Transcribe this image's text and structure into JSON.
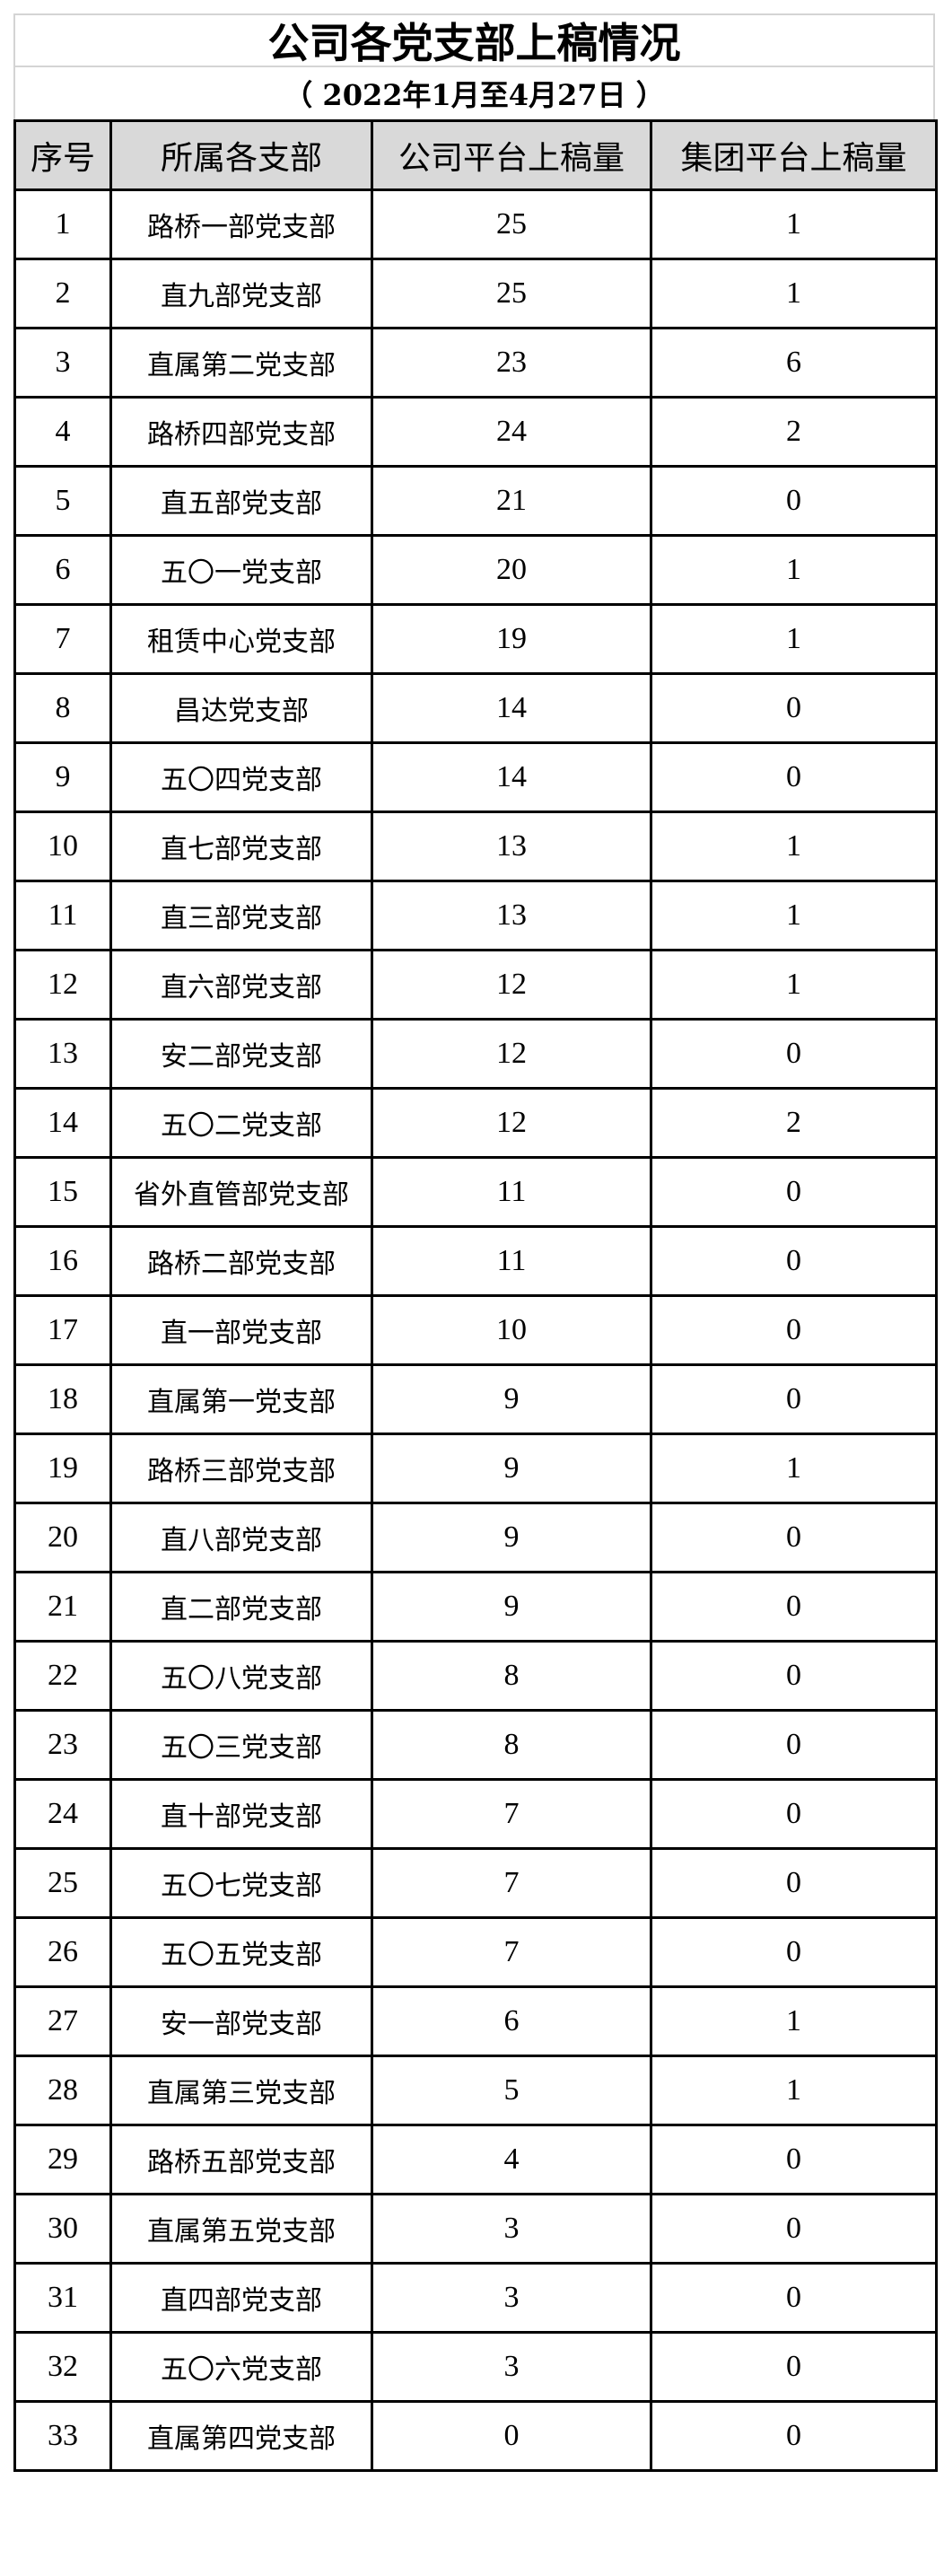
{
  "title": "公司各党支部上稿情况",
  "subtitle": "（ 2022年1月至4月27日 ）",
  "headers": [
    "序号",
    "所属各支部",
    "公司平台上稿量",
    "集团平台上稿量"
  ],
  "rows": [
    [
      "1",
      "路桥一部党支部",
      "25",
      "1"
    ],
    [
      "2",
      "直九部党支部",
      "25",
      "1"
    ],
    [
      "3",
      "直属第二党支部",
      "23",
      "6"
    ],
    [
      "4",
      "路桥四部党支部",
      "24",
      "2"
    ],
    [
      "5",
      "直五部党支部",
      "21",
      "0"
    ],
    [
      "6",
      "五〇一党支部",
      "20",
      "1"
    ],
    [
      "7",
      "租赁中心党支部",
      "19",
      "1"
    ],
    [
      "8",
      "昌达党支部",
      "14",
      "0"
    ],
    [
      "9",
      "五〇四党支部",
      "14",
      "0"
    ],
    [
      "10",
      "直七部党支部",
      "13",
      "1"
    ],
    [
      "11",
      "直三部党支部",
      "13",
      "1"
    ],
    [
      "12",
      "直六部党支部",
      "12",
      "1"
    ],
    [
      "13",
      "安二部党支部",
      "12",
      "0"
    ],
    [
      "14",
      "五〇二党支部",
      "12",
      "2"
    ],
    [
      "15",
      "省外直管部党支部",
      "11",
      "0"
    ],
    [
      "16",
      "路桥二部党支部",
      "11",
      "0"
    ],
    [
      "17",
      "直一部党支部",
      "10",
      "0"
    ],
    [
      "18",
      "直属第一党支部",
      "9",
      "0"
    ],
    [
      "19",
      "路桥三部党支部",
      "9",
      "1"
    ],
    [
      "20",
      "直八部党支部",
      "9",
      "0"
    ],
    [
      "21",
      "直二部党支部",
      "9",
      "0"
    ],
    [
      "22",
      "五〇八党支部",
      "8",
      "0"
    ],
    [
      "23",
      "五〇三党支部",
      "8",
      "0"
    ],
    [
      "24",
      "直十部党支部",
      "7",
      "0"
    ],
    [
      "25",
      "五〇七党支部",
      "7",
      "0"
    ],
    [
      "26",
      "五〇五党支部",
      "7",
      "0"
    ],
    [
      "27",
      "安一部党支部",
      "6",
      "1"
    ],
    [
      "28",
      "直属第三党支部",
      "5",
      "1"
    ],
    [
      "29",
      "路桥五部党支部",
      "4",
      "0"
    ],
    [
      "30",
      "直属第五党支部",
      "3",
      "0"
    ],
    [
      "31",
      "直四部党支部",
      "3",
      "0"
    ],
    [
      "32",
      "五〇六党支部",
      "3",
      "0"
    ],
    [
      "33",
      "直属第四党支部",
      "0",
      "0"
    ]
  ]
}
